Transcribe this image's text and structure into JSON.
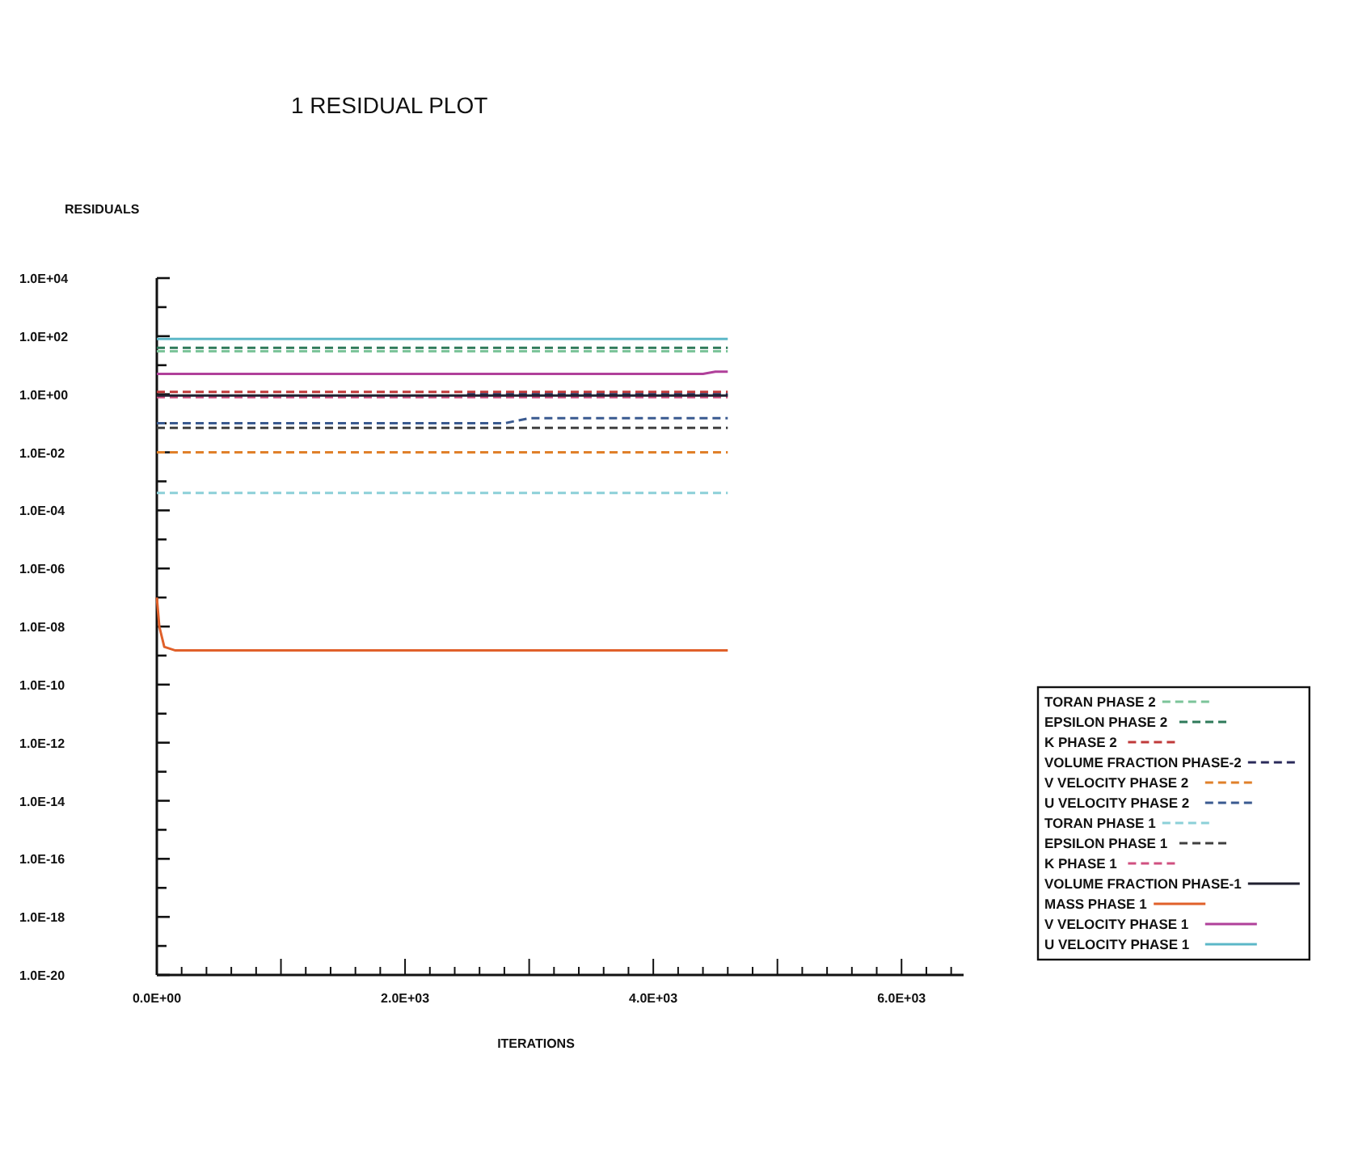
{
  "chart_data": {
    "type": "line",
    "title": "1 RESIDUAL PLOT",
    "ylabel": "RESIDUALS",
    "xlabel": "ITERATIONS",
    "log": "y",
    "grid": false,
    "legend": "right",
    "xlim": [
      0,
      6500
    ],
    "ylim": [
      1e-20,
      10000
    ],
    "xticks": [
      {
        "value": 0,
        "label": "0.0E+00"
      },
      {
        "value": 200,
        "label": null
      },
      {
        "value": 400,
        "label": null
      },
      {
        "value": 600,
        "label": null
      },
      {
        "value": 800,
        "label": null
      },
      {
        "value": 1000,
        "label": null
      },
      {
        "value": 1200,
        "label": null
      },
      {
        "value": 1400,
        "label": null
      },
      {
        "value": 1600,
        "label": null
      },
      {
        "value": 1800,
        "label": null
      },
      {
        "value": 2000,
        "label": "2.0E+03"
      },
      {
        "value": 2200,
        "label": null
      },
      {
        "value": 2400,
        "label": null
      },
      {
        "value": 2600,
        "label": null
      },
      {
        "value": 2800,
        "label": null
      },
      {
        "value": 3000,
        "label": null
      },
      {
        "value": 3200,
        "label": null
      },
      {
        "value": 3400,
        "label": null
      },
      {
        "value": 3600,
        "label": null
      },
      {
        "value": 3800,
        "label": null
      },
      {
        "value": 4000,
        "label": "4.0E+03"
      },
      {
        "value": 4200,
        "label": null
      },
      {
        "value": 4400,
        "label": null
      },
      {
        "value": 4600,
        "label": null
      },
      {
        "value": 4800,
        "label": null
      },
      {
        "value": 5000,
        "label": null
      },
      {
        "value": 5200,
        "label": null
      },
      {
        "value": 5400,
        "label": null
      },
      {
        "value": 5600,
        "label": null
      },
      {
        "value": 5800,
        "label": null
      },
      {
        "value": 6000,
        "label": "6.0E+03"
      },
      {
        "value": 6200,
        "label": null
      },
      {
        "value": 6400,
        "label": null
      }
    ],
    "yticks": [
      {
        "value": 1e-20,
        "label": "1.0E-20"
      },
      {
        "value": 1e-19,
        "label": null
      },
      {
        "value": 1e-18,
        "label": "1.0E-18"
      },
      {
        "value": 1e-17,
        "label": null
      },
      {
        "value": 1e-16,
        "label": "1.0E-16"
      },
      {
        "value": 1e-15,
        "label": null
      },
      {
        "value": 1e-14,
        "label": "1.0E-14"
      },
      {
        "value": 1e-13,
        "label": null
      },
      {
        "value": 1e-12,
        "label": "1.0E-12"
      },
      {
        "value": 1e-11,
        "label": null
      },
      {
        "value": 1e-10,
        "label": "1.0E-10"
      },
      {
        "value": 1e-09,
        "label": null
      },
      {
        "value": 1e-08,
        "label": "1.0E-08"
      },
      {
        "value": 1e-07,
        "label": null
      },
      {
        "value": 1e-06,
        "label": "1.0E-06"
      },
      {
        "value": 1e-05,
        "label": null
      },
      {
        "value": 0.0001,
        "label": "1.0E-04"
      },
      {
        "value": 0.001,
        "label": null
      },
      {
        "value": 0.01,
        "label": "1.0E-02"
      },
      {
        "value": 0.1,
        "label": null
      },
      {
        "value": 1,
        "label": "1.0E+00"
      },
      {
        "value": 10,
        "label": null
      },
      {
        "value": 100,
        "label": "1.0E+02"
      },
      {
        "value": 1000,
        "label": null
      },
      {
        "value": 10000,
        "label": "1.0E+04"
      }
    ],
    "series": [
      {
        "name": "TORAN PHASE 2",
        "color": "#7cc49a",
        "line_style": "dashed",
        "x": [
          0,
          4600
        ],
        "values": [
          30,
          30
        ]
      },
      {
        "name": "EPSILON PHASE 2",
        "color": "#2f7a5a",
        "line_style": "dashed",
        "x": [
          0,
          4600
        ],
        "values": [
          40,
          40
        ]
      },
      {
        "name": "K PHASE 2",
        "color": "#c03a3a",
        "line_style": "dashed",
        "x": [
          0,
          4600
        ],
        "values": [
          1.2,
          1.2
        ]
      },
      {
        "name": "VOLUME FRACTION PHASE-2",
        "color": "#2a2a5a",
        "line_style": "dashed",
        "x": [
          2500,
          4600
        ],
        "values": [
          1,
          1
        ]
      },
      {
        "name": "V VELOCITY PHASE 2",
        "color": "#e0802a",
        "line_style": "dashed",
        "x": [
          0,
          4600
        ],
        "values": [
          0.01,
          0.01
        ]
      },
      {
        "name": "U VELOCITY PHASE 2",
        "color": "#3a5a90",
        "line_style": "dashed",
        "x": [
          0,
          2800,
          3000,
          4600
        ],
        "values": [
          0.1,
          0.1,
          0.15,
          0.15
        ]
      },
      {
        "name": "TORAN PHASE 1",
        "color": "#8cd0d8",
        "line_style": "dashed",
        "x": [
          0,
          4600
        ],
        "values": [
          0.0004,
          0.0004
        ]
      },
      {
        "name": "EPSILON PHASE 1",
        "color": "#404040",
        "line_style": "dashed",
        "x": [
          0,
          4600
        ],
        "values": [
          0.07,
          0.07
        ]
      },
      {
        "name": "K PHASE 1",
        "color": "#d05080",
        "line_style": "dashed",
        "x": [
          0,
          4600
        ],
        "values": [
          0.8,
          0.8
        ]
      },
      {
        "name": "VOLUME FRACTION PHASE-1",
        "color": "#202030",
        "line_style": "solid",
        "x": [
          0,
          4600
        ],
        "values": [
          0.9,
          0.9
        ]
      },
      {
        "name": "MASS PHASE 1",
        "color": "#e0602a",
        "line_style": "solid",
        "x": [
          0,
          20,
          60,
          150,
          4600
        ],
        "values": [
          1e-07,
          1e-08,
          2e-09,
          1.5e-09,
          1.5e-09
        ]
      },
      {
        "name": "V VELOCITY PHASE 1",
        "color": "#b0409a",
        "line_style": "solid",
        "x": [
          0,
          4400,
          4500,
          4600
        ],
        "values": [
          5,
          5,
          6,
          6
        ]
      },
      {
        "name": "U VELOCITY PHASE 1",
        "color": "#5cb8c8",
        "line_style": "solid",
        "x": [
          0,
          4600
        ],
        "values": [
          80,
          80
        ]
      }
    ]
  }
}
